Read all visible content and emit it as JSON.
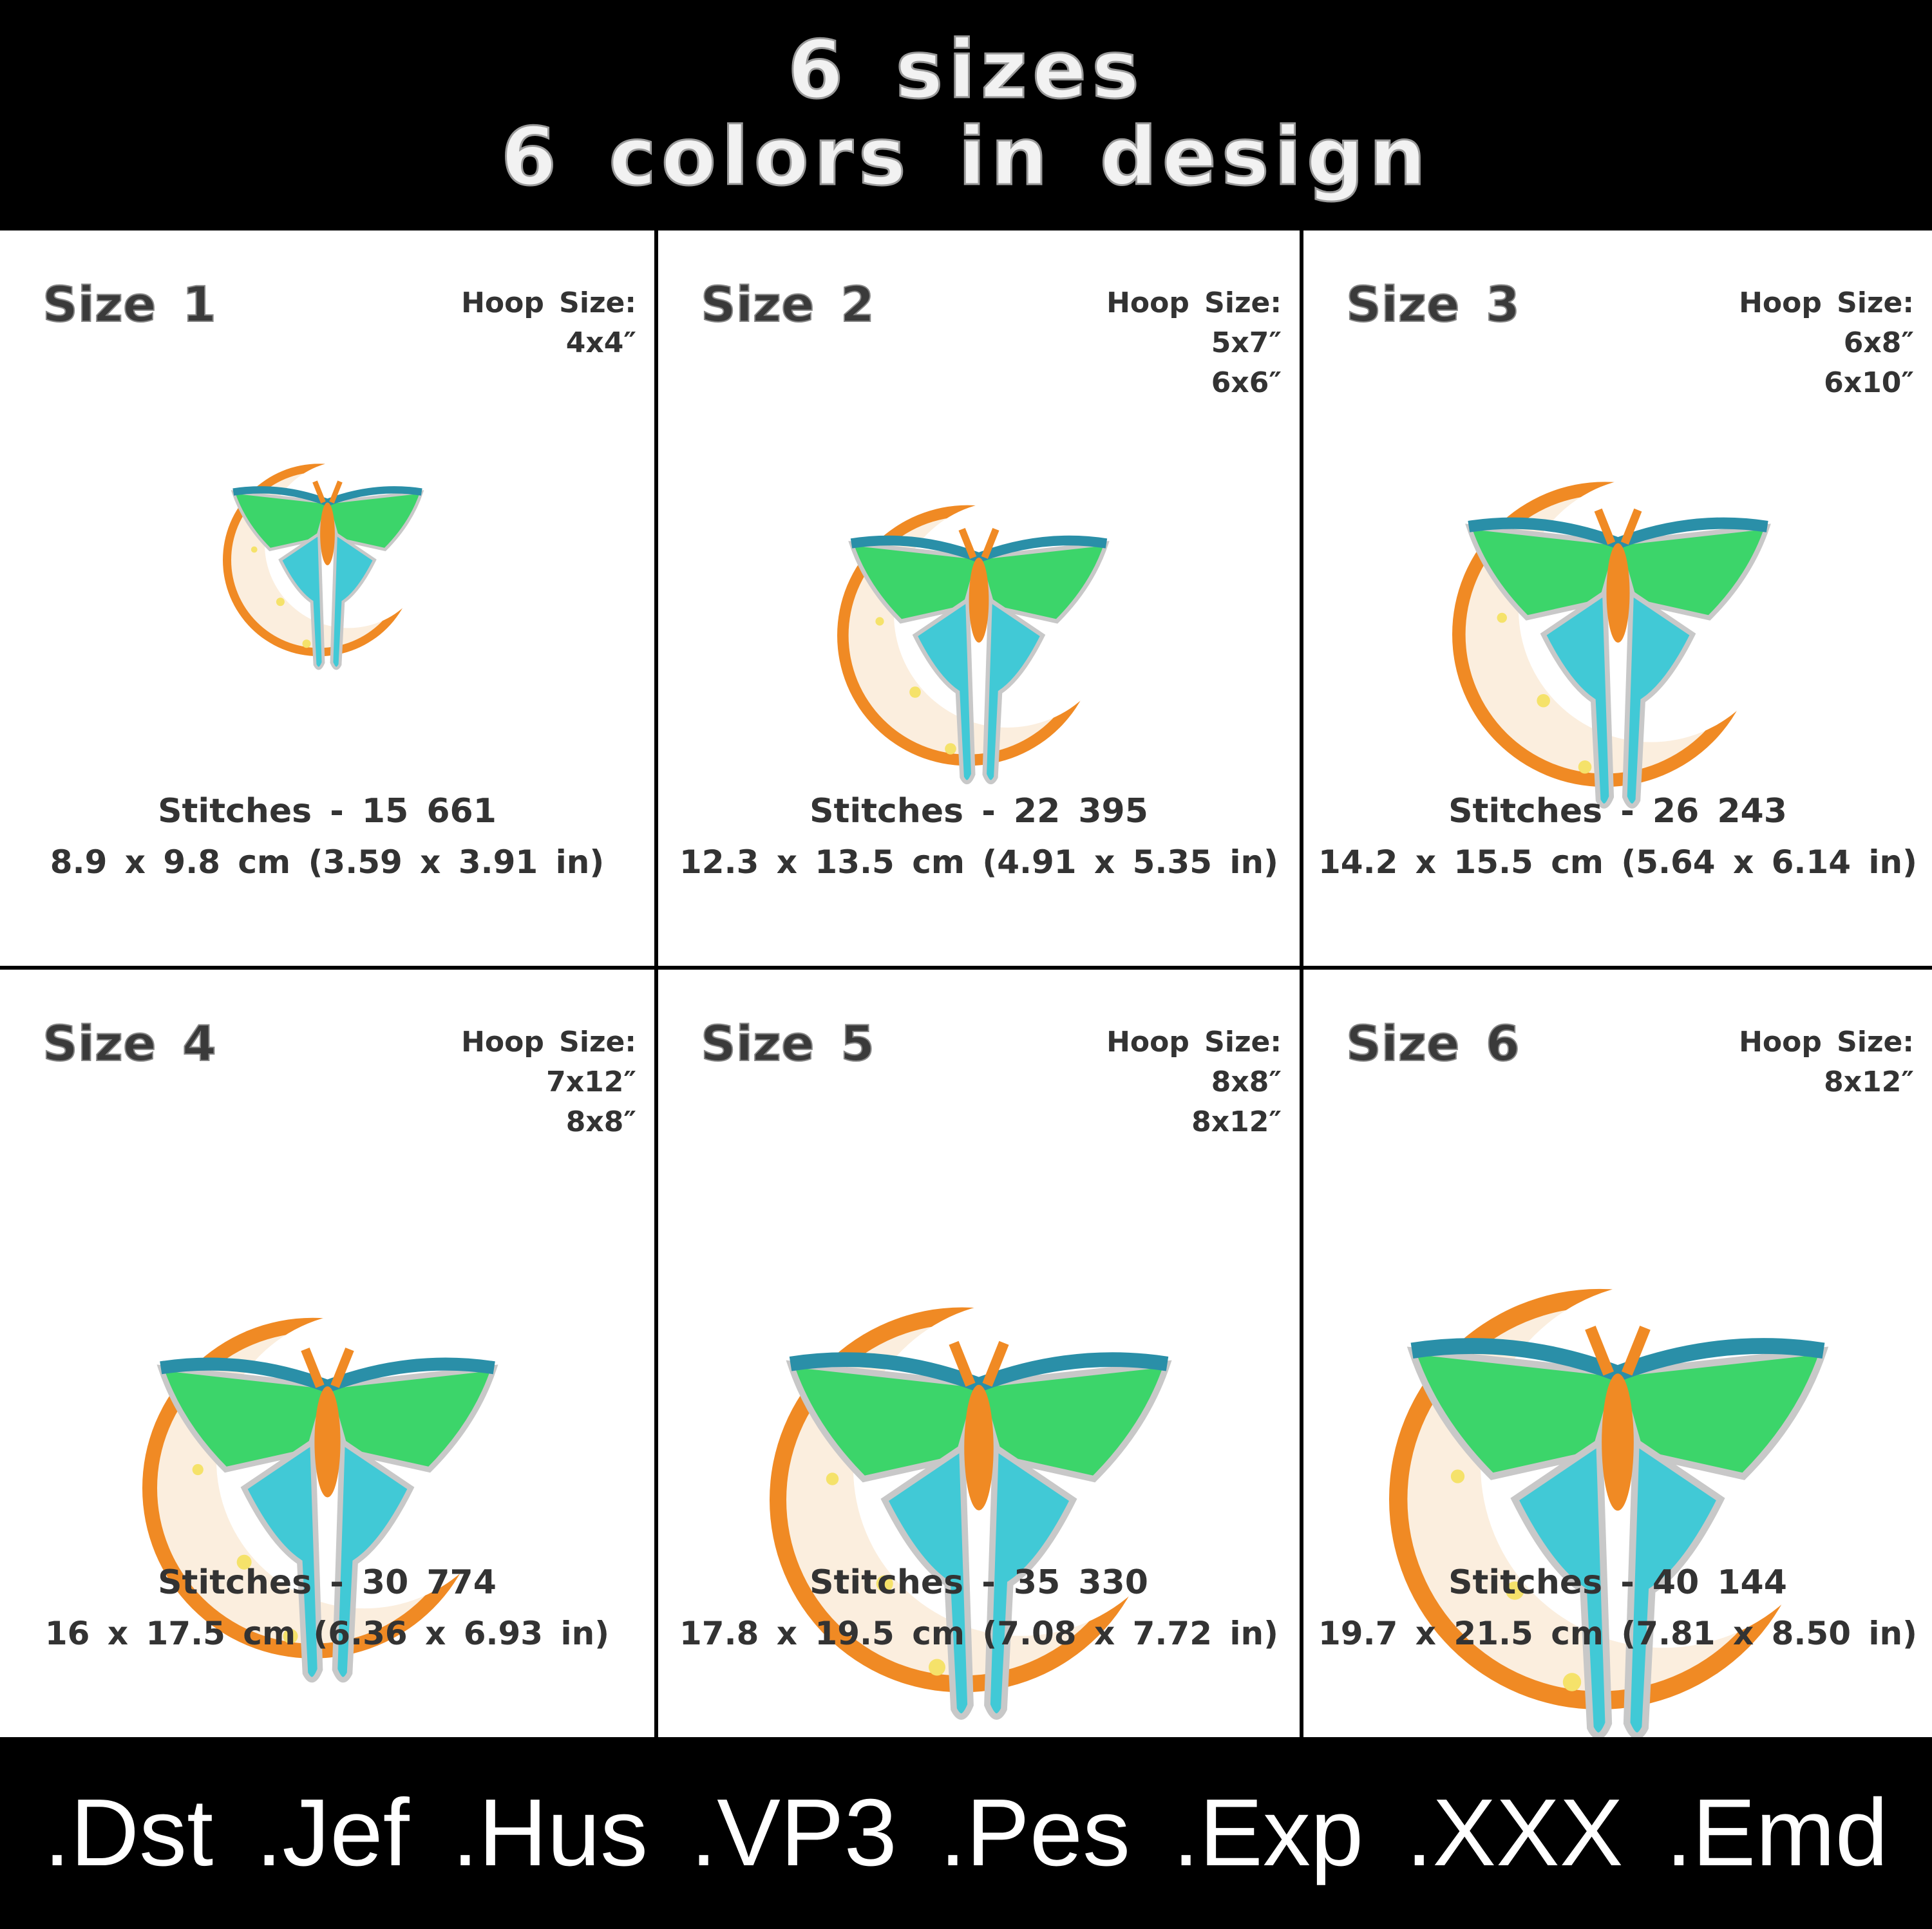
{
  "header": {
    "lines": [
      "6 sizes",
      "6 colors in design"
    ]
  },
  "cells": [
    {
      "title": "Size 1",
      "hoop_label": "Hoop Size:",
      "hoops": [
        "4x4″"
      ],
      "stitches": "Stitches - 15 661",
      "dimensions": "8.9 x 9.8 cm (3.59 x 3.91 in)"
    },
    {
      "title": "Size 2",
      "hoop_label": "Hoop Size:",
      "hoops": [
        "5x7″",
        "6x6″"
      ],
      "stitches": "Stitches - 22 395",
      "dimensions": "12.3 x 13.5 cm (4.91 x 5.35 in)"
    },
    {
      "title": "Size 3",
      "hoop_label": "Hoop Size:",
      "hoops": [
        "6x8″",
        "6x10″"
      ],
      "stitches": "Stitches - 26 243",
      "dimensions": "14.2 x 15.5 cm (5.64 x 6.14 in)"
    },
    {
      "title": "Size 4",
      "hoop_label": "Hoop Size:",
      "hoops": [
        "7x12″",
        "8x8″"
      ],
      "stitches": "Stitches - 30 774",
      "dimensions": "16 x 17.5 cm (6.36 x 6.93 in)"
    },
    {
      "title": "Size 5",
      "hoop_label": "Hoop Size:",
      "hoops": [
        "8x8″",
        "8x12″"
      ],
      "stitches": "Stitches - 35 330",
      "dimensions": "17.8 x 19.5 cm (7.08 x 7.72 in)"
    },
    {
      "title": "Size 6",
      "hoop_label": "Hoop Size:",
      "hoops": [
        "8x12″"
      ],
      "stitches": "Stitches - 40 144",
      "dimensions": "19.7 x 21.5 cm (7.81 x 8.50 in)"
    }
  ],
  "footer": {
    "formats": [
      ".Dst",
      ".Jef",
      ".Hus",
      ".VP3",
      ".Pes",
      ".Exp",
      ".XXX",
      ".Emd"
    ]
  }
}
